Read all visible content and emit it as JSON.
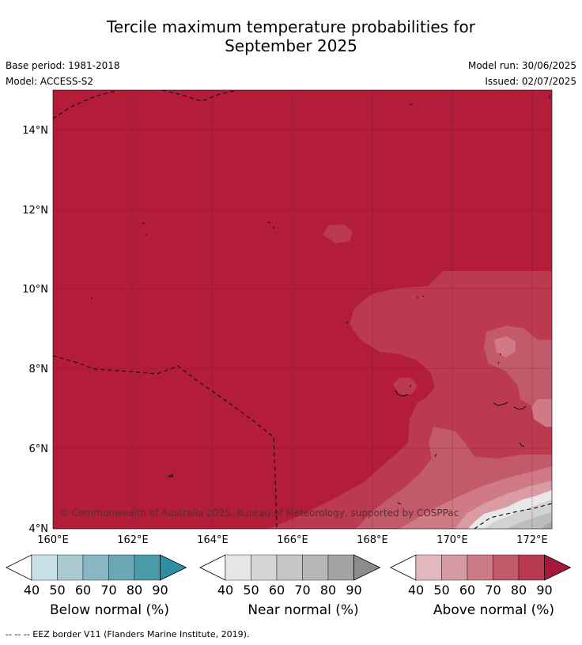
{
  "title": {
    "line1": "Tercile maximum temperature probabilities for",
    "line2": "September 2025"
  },
  "meta": {
    "base_period": "Base period: 1981-2018",
    "model": "Model: ACCESS-S2",
    "model_run": "Model run: 30/06/2025",
    "issued": "Issued: 02/07/2025"
  },
  "map": {
    "lat_labels": [
      "14°N",
      "12°N",
      "10°N",
      "8°N",
      "6°N",
      "4°N"
    ],
    "lon_labels": [
      "160°E",
      "162°E",
      "164°E",
      "166°E",
      "168°E",
      "170°E",
      "172°E"
    ],
    "copyright": "© Commonwealth of Australia 2025, Bureau of Meteorology, supported by COSPPac",
    "colors": {
      "above_90": "#b31d39",
      "above_80": "#bb3a50",
      "above_70": "#c35a6a",
      "above_60": "#cf7a86",
      "above_50": "#d99ba4",
      "near_normal": "#d2d2d2"
    }
  },
  "legends": [
    {
      "title": "Below normal (%)",
      "ticks": [
        "40",
        "50",
        "60",
        "70",
        "80",
        "90"
      ],
      "colors": [
        "#c9e1e8",
        "#a9cad1",
        "#8ab7c3",
        "#6aa8b6",
        "#4a9aa9",
        "#2f8ea2"
      ]
    },
    {
      "title": "Near normal (%)",
      "ticks": [
        "40",
        "50",
        "60",
        "70",
        "80",
        "90"
      ],
      "colors": [
        "#e6e6e6",
        "#d6d6d6",
        "#c6c6c6",
        "#b6b6b6",
        "#a4a4a4",
        "#8c8c8c"
      ]
    },
    {
      "title": "Above normal (%)",
      "ticks": [
        "40",
        "50",
        "60",
        "70",
        "80",
        "90"
      ],
      "colors": [
        "#e3b9bf",
        "#d69aa3",
        "#cc7b86",
        "#c35a6a",
        "#b73a50",
        "#a8183a"
      ]
    }
  ],
  "footer": "-- -- -- EEZ border V11 (Flanders Marine Institute, 2019)."
}
